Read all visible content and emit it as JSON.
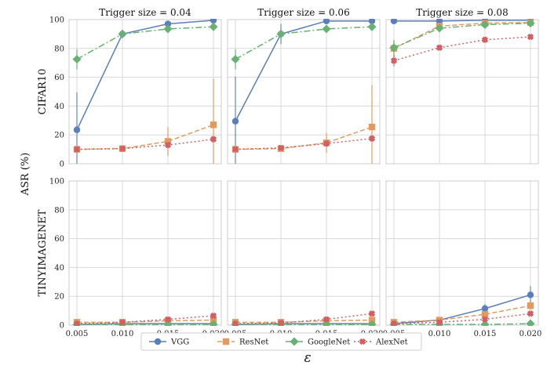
{
  "chart_data": {
    "type": "line",
    "ylabel": "ASR (%)",
    "xlabel": "ε",
    "x": [
      0.005,
      0.01,
      0.015,
      0.02
    ],
    "x_tick_labels": [
      "0.005",
      "0.010",
      "0.015",
      "0.020"
    ],
    "ylim": [
      0,
      100
    ],
    "y_ticks": [
      0,
      20,
      40,
      60,
      80,
      100
    ],
    "grid": true,
    "legend_position": "bottom-center",
    "column_titles": [
      "Trigger size = 0.04",
      "Trigger size = 0.06",
      "Trigger size = 0.08"
    ],
    "row_labels": [
      "CIFAR10",
      "TINYIMAGENET"
    ],
    "series_styles": [
      {
        "name": "VGG",
        "color": "#5b7fb8",
        "marker": "circle",
        "dash": ""
      },
      {
        "name": "ResNet",
        "color": "#e19a62",
        "marker": "square",
        "dash": "6,3"
      },
      {
        "name": "GoogleNet",
        "color": "#68b073",
        "marker": "diamond",
        "dash": "8,3,2,3"
      },
      {
        "name": "AlexNet",
        "color": "#cf6166",
        "marker": "cross",
        "dash": "2,3"
      }
    ],
    "panels": [
      {
        "row": 0,
        "col": 0,
        "series": [
          {
            "name": "VGG",
            "values": [
              23.5,
              90,
              97,
              99.5
            ],
            "err": [
              26,
              3,
              1.5,
              0.5
            ]
          },
          {
            "name": "ResNet",
            "values": [
              10,
              10.5,
              15.5,
              27
            ],
            "err": [
              1,
              1,
              10,
              32
            ]
          },
          {
            "name": "GoogleNet",
            "values": [
              72.5,
              90,
              93.5,
              95
            ],
            "err": [
              7,
              1,
              1,
              1
            ]
          },
          {
            "name": "AlexNet",
            "values": [
              10,
              10.5,
              13,
              17
            ],
            "err": [
              0.5,
              0.5,
              2,
              2
            ]
          }
        ]
      },
      {
        "row": 0,
        "col": 1,
        "series": [
          {
            "name": "VGG",
            "values": [
              29.5,
              90,
              99,
              99
            ],
            "err": [
              31,
              7,
              1,
              0.5
            ]
          },
          {
            "name": "ResNet",
            "values": [
              10,
              10.5,
              14.5,
              25.5
            ],
            "err": [
              1,
              1,
              7,
              29
            ]
          },
          {
            "name": "GoogleNet",
            "values": [
              72.5,
              90,
              93.5,
              95
            ],
            "err": [
              7,
              1,
              1,
              1
            ]
          },
          {
            "name": "AlexNet",
            "values": [
              10,
              11,
              14,
              17.5
            ],
            "err": [
              0.5,
              0.5,
              2,
              2
            ]
          }
        ]
      },
      {
        "row": 0,
        "col": 2,
        "series": [
          {
            "name": "VGG",
            "values": [
              99,
              99,
              99.5,
              99.5
            ],
            "err": [
              1,
              0.5,
              0.3,
              0.3
            ]
          },
          {
            "name": "ResNet",
            "values": [
              80,
              95.5,
              97.5,
              98
            ],
            "err": [
              6,
              2,
              1,
              1
            ]
          },
          {
            "name": "GoogleNet",
            "values": [
              80.5,
              94,
              96.5,
              97.5
            ],
            "err": [
              5,
              2,
              1,
              1
            ]
          },
          {
            "name": "AlexNet",
            "values": [
              71.5,
              80.5,
              86,
              88
            ],
            "err": [
              4,
              2,
              2,
              1
            ]
          }
        ]
      },
      {
        "row": 1,
        "col": 0,
        "series": [
          {
            "name": "VGG",
            "values": [
              0.5,
              1,
              1,
              1
            ],
            "err": [
              0.3,
              0.3,
              0.3,
              0.3
            ]
          },
          {
            "name": "ResNet",
            "values": [
              2,
              2,
              3,
              3.5
            ],
            "err": [
              0.5,
              0.5,
              0.5,
              1
            ]
          },
          {
            "name": "GoogleNet",
            "values": [
              0.5,
              0.5,
              0.5,
              0.5
            ],
            "err": [
              0.3,
              0.3,
              0.3,
              0.3
            ]
          },
          {
            "name": "AlexNet",
            "values": [
              1,
              2,
              4,
              6.5
            ],
            "err": [
              0.5,
              0.5,
              1,
              1.5
            ]
          }
        ]
      },
      {
        "row": 1,
        "col": 1,
        "series": [
          {
            "name": "VGG",
            "values": [
              0.5,
              1,
              1,
              1
            ],
            "err": [
              0.3,
              0.3,
              0.3,
              0.3
            ]
          },
          {
            "name": "ResNet",
            "values": [
              2,
              2,
              3,
              3.5
            ],
            "err": [
              0.5,
              0.5,
              0.5,
              1
            ]
          },
          {
            "name": "GoogleNet",
            "values": [
              0.5,
              0.5,
              0.5,
              0.5
            ],
            "err": [
              0.3,
              0.3,
              0.3,
              0.3
            ]
          },
          {
            "name": "AlexNet",
            "values": [
              1,
              1.5,
              4,
              8
            ],
            "err": [
              0.5,
              0.5,
              1,
              1.5
            ]
          }
        ]
      },
      {
        "row": 1,
        "col": 2,
        "series": [
          {
            "name": "VGG",
            "values": [
              1,
              3.5,
              11.5,
              21
            ],
            "err": [
              0.5,
              1,
              3,
              6
            ]
          },
          {
            "name": "ResNet",
            "values": [
              2,
              3.5,
              7.5,
              13.5
            ],
            "err": [
              0.5,
              1,
              2,
              3
            ]
          },
          {
            "name": "GoogleNet",
            "values": [
              0.5,
              0.5,
              0.5,
              1
            ],
            "err": [
              0.3,
              0.3,
              0.3,
              0.3
            ]
          },
          {
            "name": "AlexNet",
            "values": [
              1,
              2,
              4,
              8
            ],
            "err": [
              0.5,
              0.5,
              1,
              1
            ]
          }
        ]
      }
    ]
  }
}
